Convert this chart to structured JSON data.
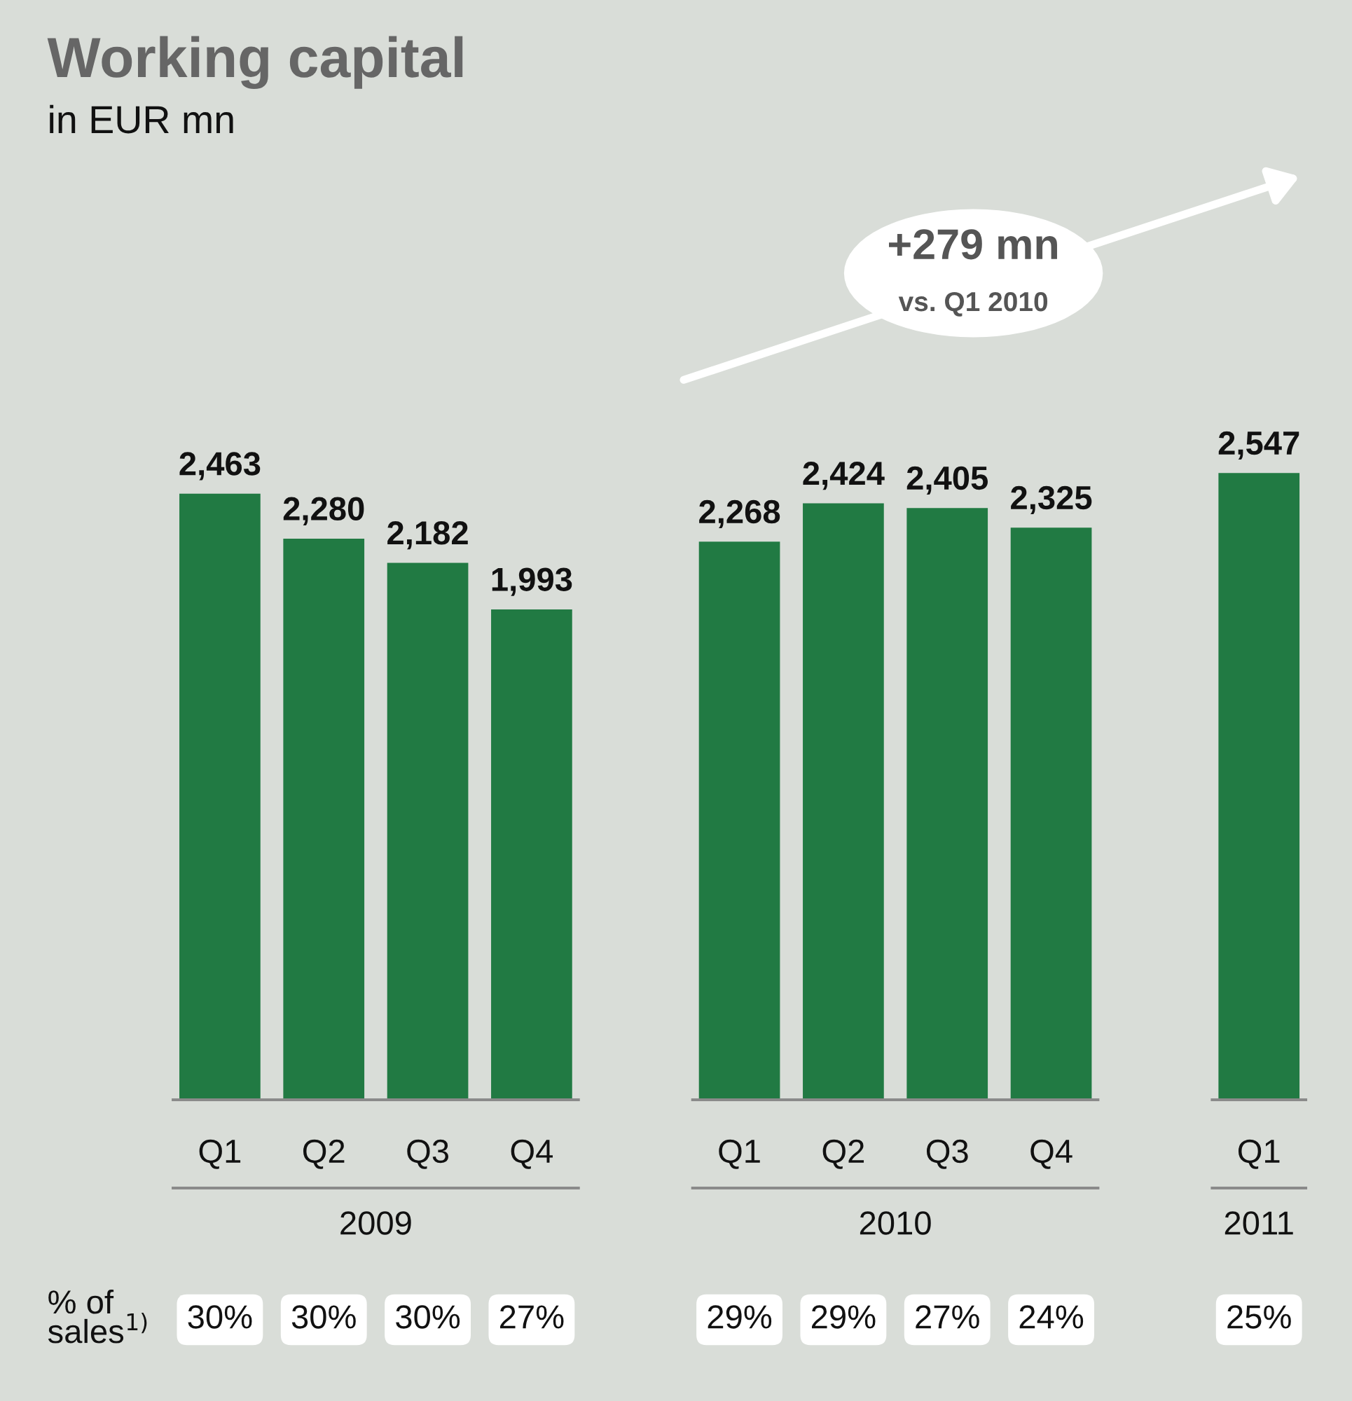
{
  "chart_data": {
    "type": "bar",
    "title": "Working capital",
    "subtitle": "in EUR mn",
    "categories": [
      "Q1",
      "Q2",
      "Q3",
      "Q4",
      null,
      "Q1",
      "Q2",
      "Q3",
      "Q4",
      null,
      "Q1"
    ],
    "values": [
      2463,
      2280,
      2182,
      1993,
      null,
      2268,
      2424,
      2405,
      2325,
      null,
      2547
    ],
    "value_labels": [
      "2,463",
      "2,280",
      "2,182",
      "1,993",
      null,
      "2,268",
      "2,424",
      "2,405",
      "2,325",
      null,
      "2,547"
    ],
    "color": "#217a43",
    "tick_labels": "x",
    "grid": false,
    "legend": false,
    "annotations": [
      "+279 mn\nvs. Q1 2010",
      "2009",
      "2010",
      "2011",
      "% of\nsales$^{1)}$",
      "30%",
      "30%",
      "30%",
      "27%",
      "29%",
      "29%",
      "27%",
      "24%",
      "25%"
    ]
  }
}
